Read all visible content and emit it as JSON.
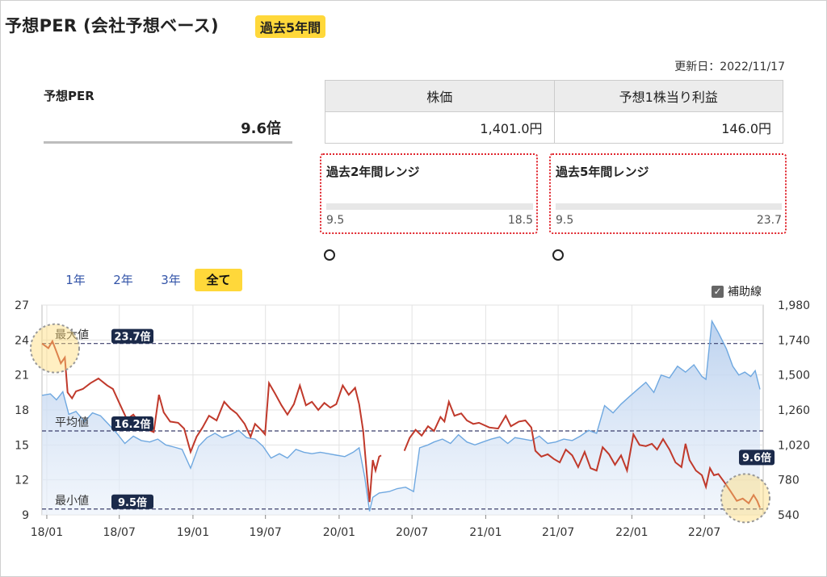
{
  "header": {
    "title": "予想PER (会社予想ベース)",
    "period_badge": "過去5年間",
    "updated": "更新日：2022/11/17"
  },
  "per": {
    "label": "予想PER",
    "value": "9.6倍"
  },
  "price_table": {
    "headers": [
      "株価",
      "予想1株当り利益"
    ],
    "values": [
      "1,401.0円",
      "146.0円"
    ]
  },
  "range_2y": {
    "title": "過去2年間レンジ",
    "min": "9.5",
    "max": "18.5",
    "current": 9.6,
    "min_value": 9.5,
    "max_value": 18.5
  },
  "range_5y": {
    "title": "過去5年間レンジ",
    "min": "9.5",
    "max": "23.7",
    "current": 9.6,
    "min_value": 9.5,
    "max_value": 23.7
  },
  "tabs": [
    "1年",
    "2年",
    "3年",
    "全て"
  ],
  "active_tab": 3,
  "aux_line_label": "補助線",
  "colors": {
    "per_line": "#c0392b",
    "price_line": "#6fa8e0",
    "price_fill": "#c9dcf2",
    "badge": "#ffd83a",
    "range_border": "#e0242c",
    "ref_badge": "#1b2a4a"
  },
  "chart_data": {
    "type": "line",
    "x_tick_labels": [
      "18/01",
      "18/07",
      "19/01",
      "19/07",
      "20/01",
      "20/07",
      "21/01",
      "21/07",
      "22/01",
      "22/07"
    ],
    "y_left_ticks": [
      "27",
      "24",
      "21",
      "18",
      "15",
      "12",
      "9"
    ],
    "y_right_ticks": [
      "1,980",
      "1,740",
      "1,500",
      "1,260",
      "1,020",
      "780",
      "540"
    ],
    "ylim_left": [
      9,
      27
    ],
    "ylim_right": [
      540,
      1980
    ],
    "xlim": [
      "2017-12-20",
      "2022-11-25"
    ],
    "reference_lines": [
      {
        "name": "最大値",
        "badge": "23.7倍",
        "value": 23.7
      },
      {
        "name": "平均値",
        "badge": "16.2倍",
        "value": 16.2
      },
      {
        "name": "最小値",
        "badge": "9.5倍",
        "value": 9.5
      }
    ],
    "current_badge": "9.6倍",
    "series": [
      {
        "axis": "left",
        "points": [
          [
            "2017-12-20",
            23.7
          ],
          [
            "2018-01-05",
            23.3
          ],
          [
            "2018-01-15",
            23.9
          ],
          [
            "2018-01-25",
            23.0
          ],
          [
            "2018-02-05",
            22.0
          ],
          [
            "2018-02-15",
            22.5
          ],
          [
            "2018-02-22",
            19.5
          ],
          [
            "2018-03-05",
            19.0
          ],
          [
            "2018-03-15",
            19.6
          ],
          [
            "2018-04-01",
            19.8
          ],
          [
            "2018-04-20",
            20.3
          ],
          [
            "2018-05-10",
            20.7
          ],
          [
            "2018-06-01",
            20.1
          ],
          [
            "2018-06-15",
            19.8
          ],
          [
            "2018-07-01",
            18.6
          ],
          [
            "2018-07-20",
            17.2
          ],
          [
            "2018-08-05",
            17.6
          ],
          [
            "2018-08-20",
            16.9
          ],
          [
            "2018-09-05",
            16.4
          ],
          [
            "2018-09-25",
            16.1
          ],
          [
            "2018-10-08",
            19.3
          ],
          [
            "2018-10-20",
            17.8
          ],
          [
            "2018-11-05",
            17.0
          ],
          [
            "2018-11-25",
            16.9
          ],
          [
            "2018-12-10",
            16.4
          ],
          [
            "2018-12-26",
            14.4
          ],
          [
            "2019-01-10",
            15.7
          ],
          [
            "2019-01-25",
            16.5
          ],
          [
            "2019-02-10",
            17.5
          ],
          [
            "2019-03-01",
            17.1
          ],
          [
            "2019-03-20",
            18.7
          ],
          [
            "2019-04-05",
            18.1
          ],
          [
            "2019-04-20",
            17.7
          ],
          [
            "2019-05-10",
            16.8
          ],
          [
            "2019-05-25",
            15.7
          ],
          [
            "2019-06-05",
            16.8
          ],
          [
            "2019-06-20",
            16.3
          ],
          [
            "2019-06-30",
            15.9
          ],
          [
            "2019-07-10",
            20.3
          ],
          [
            "2019-07-25",
            19.4
          ],
          [
            "2019-08-10",
            18.4
          ],
          [
            "2019-08-25",
            17.6
          ],
          [
            "2019-09-10",
            18.5
          ],
          [
            "2019-09-25",
            20.1
          ],
          [
            "2019-10-10",
            18.4
          ],
          [
            "2019-10-25",
            18.7
          ],
          [
            "2019-11-10",
            18.0
          ],
          [
            "2019-11-25",
            18.6
          ],
          [
            "2019-12-10",
            18.2
          ],
          [
            "2019-12-25",
            18.5
          ],
          [
            "2020-01-10",
            20.1
          ],
          [
            "2020-01-25",
            19.3
          ],
          [
            "2020-02-10",
            19.9
          ],
          [
            "2020-02-20",
            18.5
          ],
          [
            "2020-03-01",
            16.2
          ],
          [
            "2020-03-12",
            11.8
          ],
          [
            "2020-03-17",
            10.1
          ],
          [
            "2020-03-25",
            13.7
          ],
          [
            "2020-04-01",
            12.8
          ],
          [
            "2020-04-10",
            14.0
          ],
          [
            "2020-04-15",
            14.1
          ],
          [
            "2020-04-16",
            null
          ],
          [
            "2020-06-10",
            null
          ],
          [
            "2020-06-12",
            14.5
          ],
          [
            "2020-06-25",
            15.6
          ],
          [
            "2020-07-10",
            16.3
          ],
          [
            "2020-07-25",
            15.8
          ],
          [
            "2020-08-10",
            16.6
          ],
          [
            "2020-08-25",
            16.2
          ],
          [
            "2020-09-10",
            17.4
          ],
          [
            "2020-09-20",
            17.0
          ],
          [
            "2020-10-01",
            18.7
          ],
          [
            "2020-10-15",
            17.5
          ],
          [
            "2020-11-01",
            17.7
          ],
          [
            "2020-11-15",
            17.1
          ],
          [
            "2020-12-01",
            16.8
          ],
          [
            "2020-12-15",
            16.9
          ],
          [
            "2021-01-10",
            16.5
          ],
          [
            "2021-02-01",
            16.4
          ],
          [
            "2021-02-20",
            17.5
          ],
          [
            "2021-03-05",
            16.6
          ],
          [
            "2021-03-25",
            17.0
          ],
          [
            "2021-04-10",
            17.1
          ],
          [
            "2021-04-25",
            16.5
          ],
          [
            "2021-05-05",
            14.5
          ],
          [
            "2021-05-20",
            14.0
          ],
          [
            "2021-06-05",
            14.2
          ],
          [
            "2021-06-20",
            13.8
          ],
          [
            "2021-07-05",
            13.5
          ],
          [
            "2021-07-20",
            14.6
          ],
          [
            "2021-08-05",
            14.1
          ],
          [
            "2021-08-20",
            13.1
          ],
          [
            "2021-09-05",
            14.4
          ],
          [
            "2021-09-20",
            13.0
          ],
          [
            "2021-10-05",
            12.8
          ],
          [
            "2021-10-20",
            14.8
          ],
          [
            "2021-11-05",
            14.2
          ],
          [
            "2021-11-20",
            13.3
          ],
          [
            "2021-12-05",
            14.1
          ],
          [
            "2021-12-20",
            12.8
          ],
          [
            "2022-01-05",
            15.9
          ],
          [
            "2022-01-20",
            15.0
          ],
          [
            "2022-02-05",
            14.9
          ],
          [
            "2022-02-20",
            15.1
          ],
          [
            "2022-03-05",
            14.6
          ],
          [
            "2022-03-20",
            15.5
          ],
          [
            "2022-04-05",
            14.6
          ],
          [
            "2022-04-20",
            13.5
          ],
          [
            "2022-05-05",
            13.1
          ],
          [
            "2022-05-15",
            15.1
          ],
          [
            "2022-05-25",
            13.7
          ],
          [
            "2022-06-10",
            12.8
          ],
          [
            "2022-06-25",
            12.4
          ],
          [
            "2022-07-05",
            11.4
          ],
          [
            "2022-07-15",
            13.0
          ],
          [
            "2022-07-25",
            12.4
          ],
          [
            "2022-08-05",
            12.5
          ],
          [
            "2022-08-20",
            11.8
          ],
          [
            "2022-09-05",
            11.0
          ],
          [
            "2022-09-20",
            10.2
          ],
          [
            "2022-10-05",
            10.4
          ],
          [
            "2022-10-20",
            10.0
          ],
          [
            "2022-11-01",
            10.7
          ],
          [
            "2022-11-10",
            10.2
          ],
          [
            "2022-11-17",
            9.6
          ]
        ]
      },
      {
        "axis": "right",
        "points": [
          [
            "2017-12-20",
            1360
          ],
          [
            "2018-01-10",
            1370
          ],
          [
            "2018-01-25",
            1330
          ],
          [
            "2018-02-10",
            1385
          ],
          [
            "2018-02-25",
            1230
          ],
          [
            "2018-03-15",
            1250
          ],
          [
            "2018-04-05",
            1180
          ],
          [
            "2018-04-25",
            1240
          ],
          [
            "2018-05-15",
            1220
          ],
          [
            "2018-06-05",
            1160
          ],
          [
            "2018-06-25",
            1100
          ],
          [
            "2018-07-15",
            1030
          ],
          [
            "2018-08-05",
            1080
          ],
          [
            "2018-08-25",
            1050
          ],
          [
            "2018-09-15",
            1040
          ],
          [
            "2018-10-05",
            1060
          ],
          [
            "2018-10-25",
            1020
          ],
          [
            "2018-11-15",
            1005
          ],
          [
            "2018-12-05",
            990
          ],
          [
            "2018-12-26",
            860
          ],
          [
            "2019-01-15",
            1010
          ],
          [
            "2019-02-05",
            1070
          ],
          [
            "2019-02-25",
            1100
          ],
          [
            "2019-03-15",
            1070
          ],
          [
            "2019-04-05",
            1090
          ],
          [
            "2019-04-25",
            1120
          ],
          [
            "2019-05-15",
            1070
          ],
          [
            "2019-06-05",
            1060
          ],
          [
            "2019-06-25",
            1010
          ],
          [
            "2019-07-15",
            930
          ],
          [
            "2019-08-05",
            960
          ],
          [
            "2019-08-25",
            930
          ],
          [
            "2019-09-15",
            990
          ],
          [
            "2019-10-05",
            970
          ],
          [
            "2019-10-25",
            960
          ],
          [
            "2019-11-15",
            970
          ],
          [
            "2019-12-05",
            960
          ],
          [
            "2019-12-25",
            950
          ],
          [
            "2020-01-15",
            940
          ],
          [
            "2020-02-05",
            970
          ],
          [
            "2020-02-20",
            1000
          ],
          [
            "2020-03-05",
            800
          ],
          [
            "2020-03-17",
            565
          ],
          [
            "2020-03-25",
            660
          ],
          [
            "2020-04-10",
            690
          ],
          [
            "2020-05-05",
            700
          ],
          [
            "2020-05-25",
            720
          ],
          [
            "2020-06-15",
            730
          ],
          [
            "2020-07-05",
            700
          ],
          [
            "2020-07-20",
            1000
          ],
          [
            "2020-08-10",
            1020
          ],
          [
            "2020-08-25",
            1040
          ],
          [
            "2020-09-15",
            1060
          ],
          [
            "2020-10-05",
            1030
          ],
          [
            "2020-10-25",
            1090
          ],
          [
            "2020-11-15",
            1040
          ],
          [
            "2020-12-05",
            1020
          ],
          [
            "2020-12-25",
            1040
          ],
          [
            "2021-01-15",
            1060
          ],
          [
            "2021-02-05",
            1075
          ],
          [
            "2021-02-25",
            1030
          ],
          [
            "2021-03-15",
            1070
          ],
          [
            "2021-04-05",
            1060
          ],
          [
            "2021-04-25",
            1050
          ],
          [
            "2021-05-15",
            1080
          ],
          [
            "2021-06-05",
            1030
          ],
          [
            "2021-06-25",
            1040
          ],
          [
            "2021-07-15",
            1060
          ],
          [
            "2021-08-05",
            1050
          ],
          [
            "2021-08-25",
            1080
          ],
          [
            "2021-09-15",
            1120
          ],
          [
            "2021-10-05",
            1100
          ],
          [
            "2021-10-25",
            1290
          ],
          [
            "2021-11-15",
            1240
          ],
          [
            "2021-12-05",
            1300
          ],
          [
            "2021-12-25",
            1350
          ],
          [
            "2022-01-15",
            1400
          ],
          [
            "2022-02-05",
            1450
          ],
          [
            "2022-02-25",
            1380
          ],
          [
            "2022-03-15",
            1500
          ],
          [
            "2022-04-05",
            1480
          ],
          [
            "2022-04-25",
            1560
          ],
          [
            "2022-05-15",
            1520
          ],
          [
            "2022-06-05",
            1570
          ],
          [
            "2022-06-25",
            1490
          ],
          [
            "2022-07-05",
            1470
          ],
          [
            "2022-07-20",
            1870
          ],
          [
            "2022-08-05",
            1790
          ],
          [
            "2022-08-25",
            1680
          ],
          [
            "2022-09-10",
            1560
          ],
          [
            "2022-09-25",
            1500
          ],
          [
            "2022-10-10",
            1520
          ],
          [
            "2022-10-25",
            1490
          ],
          [
            "2022-11-05",
            1530
          ],
          [
            "2022-11-17",
            1401
          ]
        ]
      }
    ]
  }
}
